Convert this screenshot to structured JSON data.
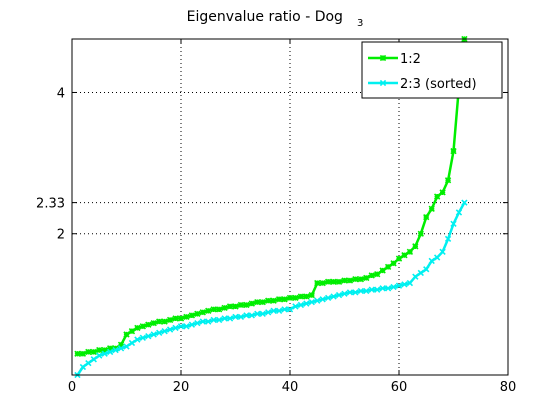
{
  "chart_data": {
    "type": "line",
    "title": "Eigenvalue ratio - Dog",
    "title_subscript": "3",
    "xlim": [
      0,
      80
    ],
    "ylim": [
      1,
      5.2
    ],
    "y_scale": "log",
    "x_ticks": [
      0,
      20,
      40,
      60,
      80
    ],
    "y_ticks": [
      2,
      2.33,
      4
    ],
    "y_tick_labels": [
      "2",
      "2.33",
      "4"
    ],
    "grid": "dotted",
    "legend_position": "top-right",
    "series": [
      {
        "name": "1:2",
        "color": "#00ee00",
        "marker": "asterisk",
        "x": [
          1,
          2,
          3,
          4,
          5,
          6,
          7,
          8,
          9,
          10,
          11,
          12,
          13,
          14,
          15,
          16,
          17,
          18,
          19,
          20,
          21,
          22,
          23,
          24,
          25,
          26,
          27,
          28,
          29,
          30,
          31,
          32,
          33,
          34,
          35,
          36,
          37,
          38,
          39,
          40,
          41,
          42,
          43,
          44,
          45,
          46,
          47,
          48,
          49,
          50,
          51,
          52,
          53,
          54,
          55,
          56,
          57,
          58,
          59,
          60,
          61,
          62,
          63,
          64,
          65,
          66,
          67,
          68,
          69,
          70,
          71,
          72
        ],
        "y": [
          1.11,
          1.11,
          1.12,
          1.12,
          1.13,
          1.13,
          1.14,
          1.14,
          1.16,
          1.22,
          1.24,
          1.26,
          1.27,
          1.28,
          1.29,
          1.3,
          1.3,
          1.31,
          1.32,
          1.32,
          1.33,
          1.34,
          1.35,
          1.36,
          1.37,
          1.38,
          1.38,
          1.39,
          1.4,
          1.4,
          1.41,
          1.41,
          1.42,
          1.43,
          1.43,
          1.44,
          1.44,
          1.45,
          1.45,
          1.46,
          1.46,
          1.47,
          1.47,
          1.48,
          1.57,
          1.57,
          1.58,
          1.58,
          1.58,
          1.59,
          1.59,
          1.6,
          1.6,
          1.61,
          1.63,
          1.64,
          1.67,
          1.7,
          1.73,
          1.77,
          1.8,
          1.83,
          1.88,
          2.0,
          2.17,
          2.26,
          2.4,
          2.45,
          2.6,
          3.0,
          4.1,
          5.2
        ]
      },
      {
        "name": "2:3 (sorted)",
        "color": "#00f0f0",
        "marker": "x",
        "x": [
          1,
          2,
          3,
          4,
          5,
          6,
          7,
          8,
          9,
          10,
          11,
          12,
          13,
          14,
          15,
          16,
          17,
          18,
          19,
          20,
          21,
          22,
          23,
          24,
          25,
          26,
          27,
          28,
          29,
          30,
          31,
          32,
          33,
          34,
          35,
          36,
          37,
          38,
          39,
          40,
          41,
          42,
          43,
          44,
          45,
          46,
          47,
          48,
          49,
          50,
          51,
          52,
          53,
          54,
          55,
          56,
          57,
          58,
          59,
          60,
          61,
          62,
          63,
          64,
          65,
          66,
          67,
          68,
          69,
          70,
          71,
          72
        ],
        "y": [
          1.0,
          1.04,
          1.06,
          1.08,
          1.1,
          1.11,
          1.12,
          1.13,
          1.14,
          1.15,
          1.17,
          1.19,
          1.2,
          1.21,
          1.22,
          1.23,
          1.24,
          1.25,
          1.26,
          1.27,
          1.27,
          1.28,
          1.29,
          1.3,
          1.3,
          1.31,
          1.31,
          1.32,
          1.32,
          1.33,
          1.33,
          1.34,
          1.34,
          1.35,
          1.35,
          1.36,
          1.37,
          1.37,
          1.38,
          1.38,
          1.4,
          1.41,
          1.42,
          1.43,
          1.44,
          1.45,
          1.46,
          1.47,
          1.48,
          1.49,
          1.5,
          1.5,
          1.51,
          1.51,
          1.52,
          1.52,
          1.53,
          1.53,
          1.54,
          1.55,
          1.56,
          1.57,
          1.62,
          1.65,
          1.68,
          1.75,
          1.78,
          1.83,
          1.95,
          2.1,
          2.22,
          2.33
        ]
      }
    ]
  }
}
